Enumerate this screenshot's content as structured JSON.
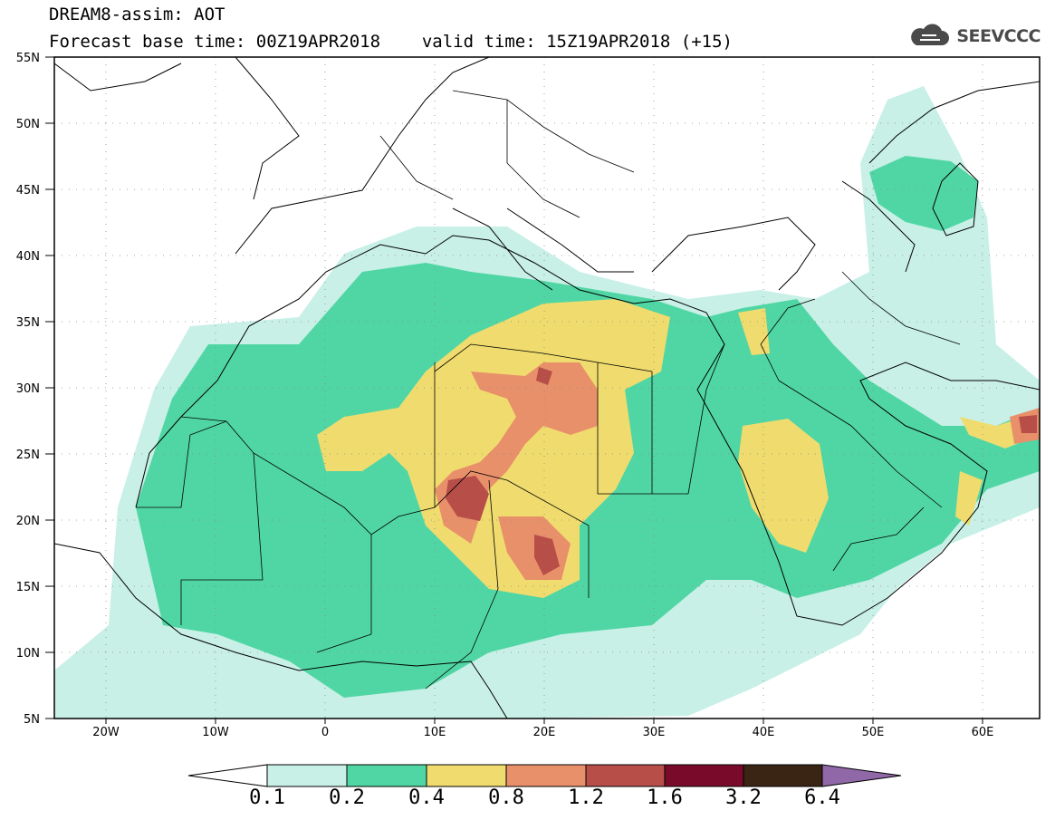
{
  "header": {
    "title_line1": "DREAM8-assim: AOT",
    "base_time": "Forecast base time: 00Z19APR2018",
    "valid_time": "valid time: 15Z19APR2018 (+15)"
  },
  "logo": {
    "text": "SEEVCCC",
    "icon": "cloud-logo-icon"
  },
  "map": {
    "lat_labels": [
      "55N",
      "50N",
      "45N",
      "40N",
      "35N",
      "30N",
      "25N",
      "20N",
      "15N",
      "10N",
      "5N"
    ],
    "lon_labels": [
      "20W",
      "10W",
      "0",
      "10E",
      "20E",
      "30E",
      "40E",
      "50E",
      "60E"
    ],
    "lon_range": [
      -25,
      65
    ],
    "lat_range": [
      5,
      55
    ],
    "gridlines": "dotted"
  },
  "colorbar": {
    "labels": [
      "0.1",
      "0.2",
      "0.4",
      "0.8",
      "1.2",
      "1.6",
      "3.2",
      "6.4"
    ],
    "colors": [
      "#ffffff",
      "#c8f0e6",
      "#50d6a4",
      "#f0dc6e",
      "#e8906a",
      "#b84e48",
      "#7a0a2a",
      "#3a2414",
      "#9068a8"
    ]
  }
}
